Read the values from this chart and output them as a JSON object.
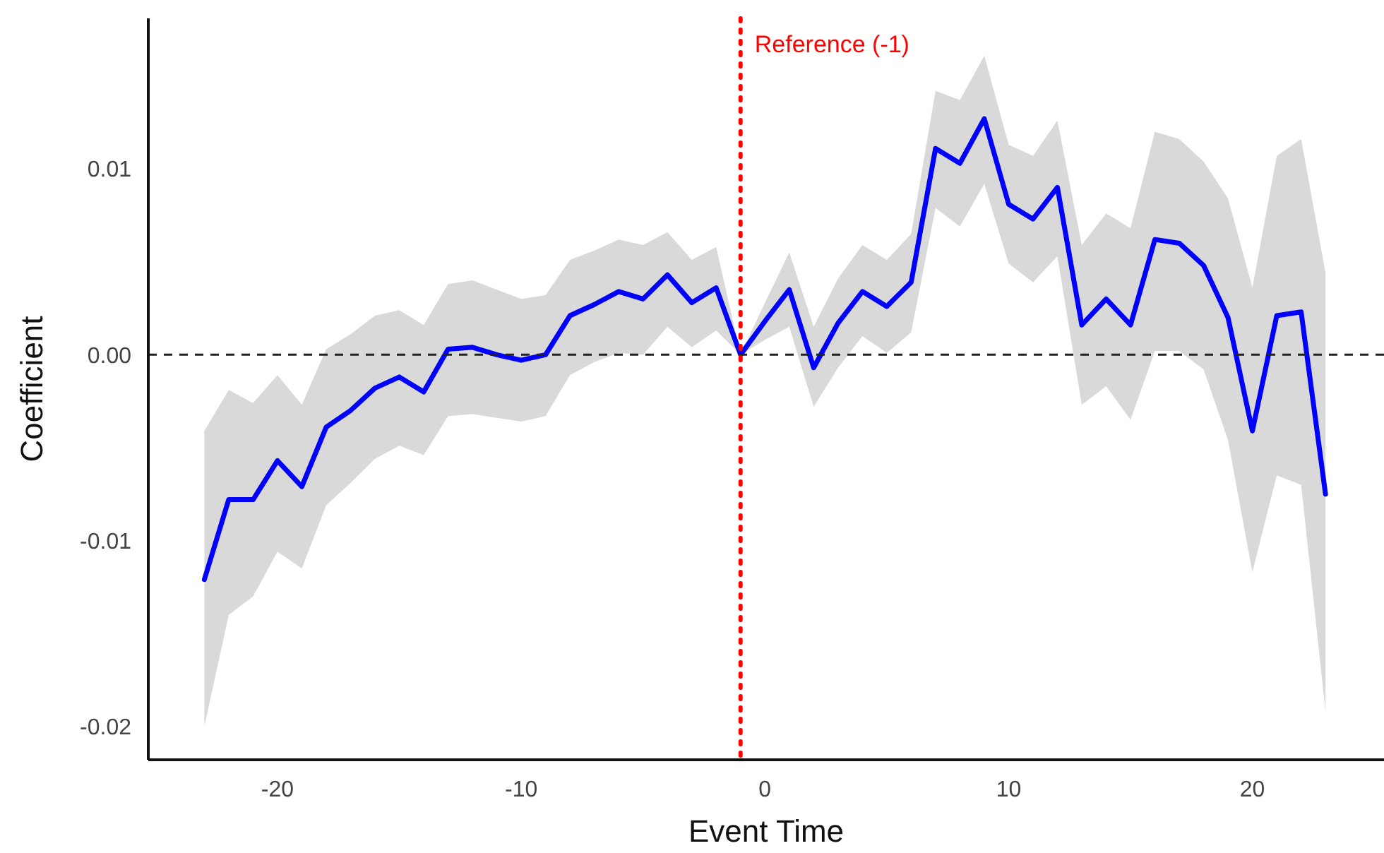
{
  "chart_data": {
    "type": "line",
    "xlabel": "Event Time",
    "ylabel": "Coefficient",
    "x": [
      -23,
      -22,
      -21,
      -20,
      -19,
      -18,
      -17,
      -16,
      -15,
      -14,
      -13,
      -12,
      -11,
      -10,
      -9,
      -8,
      -7,
      -6,
      -5,
      -4,
      -3,
      -2,
      -1,
      0,
      1,
      2,
      3,
      4,
      5,
      6,
      7,
      8,
      9,
      10,
      11,
      12,
      13,
      14,
      15,
      16,
      17,
      18,
      19,
      20,
      21,
      22,
      23
    ],
    "series": [
      {
        "color": "#0000ff",
        "values": [
          -0.0121,
          -0.0078,
          -0.0078,
          -0.0057,
          -0.0071,
          -0.0039,
          -0.003,
          -0.0018,
          -0.0012,
          -0.002,
          0.0003,
          0.0004,
          0.0,
          -0.0003,
          0.0,
          0.0021,
          0.0027,
          0.0034,
          0.003,
          0.0043,
          0.0028,
          0.0036,
          0.0,
          0.0018,
          0.0035,
          -0.0007,
          0.0017,
          0.0034,
          0.0026,
          0.0039,
          0.0111,
          0.0103,
          0.0127,
          0.0081,
          0.0073,
          0.009,
          0.0016,
          0.003,
          0.0016,
          0.0062,
          0.006,
          0.0048,
          0.002,
          -0.0041,
          0.0021,
          0.0023,
          -0.0075
        ],
        "lower": [
          -0.02,
          -0.014,
          -0.013,
          -0.0106,
          -0.0115,
          -0.0081,
          -0.0069,
          -0.0056,
          -0.0049,
          -0.0054,
          -0.0033,
          -0.0032,
          -0.0034,
          -0.0036,
          -0.0033,
          -0.0011,
          -0.0004,
          0.0001,
          0.0,
          0.0015,
          0.0004,
          0.0013,
          0.0,
          0.0008,
          0.0015,
          -0.0028,
          -0.0007,
          0.001,
          0.0001,
          0.0012,
          0.0079,
          0.0069,
          0.0092,
          0.0049,
          0.0039,
          0.0053,
          -0.0027,
          -0.0017,
          -0.0035,
          0.0002,
          0.0002,
          -0.0008,
          -0.0046,
          -0.0117,
          -0.0065,
          -0.007,
          -0.0192
        ],
        "upper": [
          -0.0041,
          -0.0019,
          -0.0026,
          -0.0011,
          -0.0027,
          0.0003,
          0.0011,
          0.0021,
          0.0024,
          0.0016,
          0.0038,
          0.004,
          0.0035,
          0.003,
          0.0032,
          0.0051,
          0.0056,
          0.0062,
          0.0059,
          0.0066,
          0.0051,
          0.0058,
          0.0,
          0.0028,
          0.0055,
          0.0015,
          0.0041,
          0.0059,
          0.0051,
          0.0065,
          0.0142,
          0.0137,
          0.0161,
          0.0113,
          0.0107,
          0.0126,
          0.0059,
          0.0076,
          0.0068,
          0.012,
          0.0116,
          0.0104,
          0.0084,
          0.0036,
          0.0107,
          0.0116,
          0.0044
        ]
      }
    ],
    "xlim": [
      -25.3,
      25.4
    ],
    "xticks": [
      -20,
      -10,
      0,
      10,
      20
    ],
    "ylim": [
      -0.0218,
      0.0181
    ],
    "yticks": [
      {
        "value": -0.02,
        "label": "-0.02"
      },
      {
        "value": -0.01,
        "label": "-0.01"
      },
      {
        "value": 0,
        "label": "0.00"
      },
      {
        "value": 0.01,
        "label": "0.01"
      }
    ],
    "grid": false,
    "marker": "none",
    "line_style": "solid",
    "ref_lines": [
      {
        "axis": "y",
        "value": 0,
        "color": "#222222",
        "line_style": "dashed"
      },
      {
        "axis": "x",
        "value": -1,
        "label": "Reference (-1)",
        "color": "#ff0000",
        "line_style": "dotted"
      }
    ]
  }
}
